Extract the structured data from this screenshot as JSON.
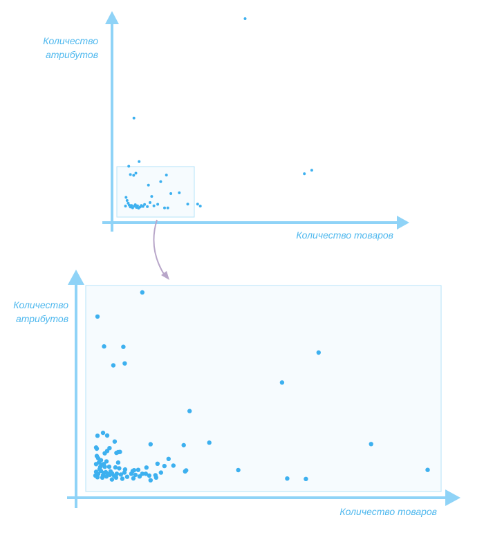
{
  "colors": {
    "axis": "#8fd3f7",
    "point": "#3db0ef",
    "label": "#4fb8ee",
    "zoom_box_stroke": "#b4e3f8",
    "zoom_box_fill": "#f6fbfe",
    "connector": "#b8a6c9"
  },
  "chart_data": [
    {
      "type": "scatter",
      "role": "overview",
      "xlabel": "Количество товаров",
      "ylabel_lines": [
        "Количество",
        "атрибутов"
      ],
      "xlim": [
        0,
        1
      ],
      "ylim": [
        0,
        1
      ],
      "grid": false,
      "zoom_region": {
        "x": [
          0,
          0.274
        ],
        "y": [
          0,
          0.25
        ]
      },
      "points": [
        [
          0.462,
          1.0
        ],
        [
          0.055,
          0.483
        ],
        [
          0.679,
          0.193
        ],
        [
          0.706,
          0.211
        ],
        [
          0.074,
          0.256
        ],
        [
          0.036,
          0.232
        ],
        [
          0.062,
          0.196
        ],
        [
          0.042,
          0.189
        ],
        [
          0.054,
          0.185
        ],
        [
          0.174,
          0.186
        ],
        [
          0.108,
          0.134
        ],
        [
          0.153,
          0.152
        ],
        [
          0.221,
          0.094
        ],
        [
          0.19,
          0.09
        ],
        [
          0.252,
          0.035
        ],
        [
          0.288,
          0.035
        ],
        [
          0.298,
          0.025
        ],
        [
          0.167,
          0.015
        ],
        [
          0.179,
          0.015
        ],
        [
          0.026,
          0.07
        ],
        [
          0.03,
          0.054
        ],
        [
          0.034,
          0.04
        ],
        [
          0.038,
          0.03
        ],
        [
          0.024,
          0.025
        ],
        [
          0.042,
          0.02
        ],
        [
          0.046,
          0.028
        ],
        [
          0.05,
          0.016
        ],
        [
          0.056,
          0.024
        ],
        [
          0.06,
          0.032
        ],
        [
          0.064,
          0.018
        ],
        [
          0.068,
          0.026
        ],
        [
          0.072,
          0.014
        ],
        [
          0.078,
          0.02
        ],
        [
          0.082,
          0.028
        ],
        [
          0.088,
          0.023
        ],
        [
          0.094,
          0.033
        ],
        [
          0.104,
          0.022
        ],
        [
          0.114,
          0.043
        ],
        [
          0.12,
          0.075
        ],
        [
          0.128,
          0.026
        ],
        [
          0.142,
          0.034
        ]
      ]
    },
    {
      "type": "scatter",
      "role": "zoomed",
      "xlabel": "Количество товаров",
      "ylabel_lines": [
        "Количество",
        "атрибутов"
      ],
      "xlim": [
        0,
        1
      ],
      "ylim": [
        0,
        1
      ],
      "grid": false,
      "points": [
        [
          0.15,
          1.0
        ],
        [
          0.02,
          0.875
        ],
        [
          0.039,
          0.72
        ],
        [
          0.095,
          0.718
        ],
        [
          0.066,
          0.622
        ],
        [
          0.099,
          0.632
        ],
        [
          0.661,
          0.688
        ],
        [
          0.555,
          0.533
        ],
        [
          0.287,
          0.385
        ],
        [
          0.813,
          0.214
        ],
        [
          0.344,
          0.221
        ],
        [
          0.174,
          0.213
        ],
        [
          0.27,
          0.208
        ],
        [
          0.036,
          0.272
        ],
        [
          0.048,
          0.258
        ],
        [
          0.02,
          0.257
        ],
        [
          0.07,
          0.227
        ],
        [
          0.016,
          0.196
        ],
        [
          0.018,
          0.19
        ],
        [
          0.055,
          0.193
        ],
        [
          0.048,
          0.178
        ],
        [
          0.041,
          0.166
        ],
        [
          0.08,
          0.172
        ],
        [
          0.085,
          0.173
        ],
        [
          0.075,
          0.168
        ],
        [
          0.08,
          0.118
        ],
        [
          0.018,
          0.152
        ],
        [
          0.022,
          0.14
        ],
        [
          0.03,
          0.13
        ],
        [
          0.038,
          0.11
        ],
        [
          0.028,
          0.095
        ],
        [
          0.041,
          0.096
        ],
        [
          0.054,
          0.096
        ],
        [
          0.072,
          0.093
        ],
        [
          0.083,
          0.088
        ],
        [
          0.1,
          0.082
        ],
        [
          0.126,
          0.078
        ],
        [
          0.162,
          0.092
        ],
        [
          0.194,
          0.112
        ],
        [
          0.214,
          0.1
        ],
        [
          0.226,
          0.137
        ],
        [
          0.24,
          0.102
        ],
        [
          0.274,
          0.072
        ],
        [
          0.277,
          0.077
        ],
        [
          0.428,
          0.079
        ],
        [
          0.57,
          0.035
        ],
        [
          0.624,
          0.033
        ],
        [
          0.977,
          0.08
        ],
        [
          0.016,
          0.07
        ],
        [
          0.022,
          0.06
        ],
        [
          0.03,
          0.075
        ],
        [
          0.036,
          0.052
        ],
        [
          0.044,
          0.068
        ],
        [
          0.05,
          0.058
        ],
        [
          0.058,
          0.072
        ],
        [
          0.014,
          0.05
        ],
        [
          0.02,
          0.042
        ],
        [
          0.026,
          0.084
        ],
        [
          0.034,
          0.04
        ],
        [
          0.038,
          0.064
        ],
        [
          0.046,
          0.046
        ],
        [
          0.056,
          0.054
        ],
        [
          0.062,
          0.062
        ],
        [
          0.068,
          0.05
        ],
        [
          0.076,
          0.06
        ],
        [
          0.088,
          0.056
        ],
        [
          0.098,
          0.066
        ],
        [
          0.118,
          0.06
        ],
        [
          0.13,
          0.054
        ],
        [
          0.142,
          0.046
        ],
        [
          0.16,
          0.06
        ],
        [
          0.17,
          0.05
        ],
        [
          0.19,
          0.04
        ],
        [
          0.204,
          0.066
        ],
        [
          0.062,
          0.03
        ],
        [
          0.074,
          0.04
        ],
        [
          0.092,
          0.034
        ],
        [
          0.106,
          0.044
        ],
        [
          0.122,
          0.074
        ],
        [
          0.138,
          0.08
        ],
        [
          0.016,
          0.11
        ],
        [
          0.024,
          0.118
        ],
        [
          0.032,
          0.106
        ],
        [
          0.046,
          0.124
        ],
        [
          0.124,
          0.036
        ],
        [
          0.15,
          0.06
        ],
        [
          0.174,
          0.026
        ],
        [
          0.188,
          0.052
        ]
      ]
    }
  ]
}
